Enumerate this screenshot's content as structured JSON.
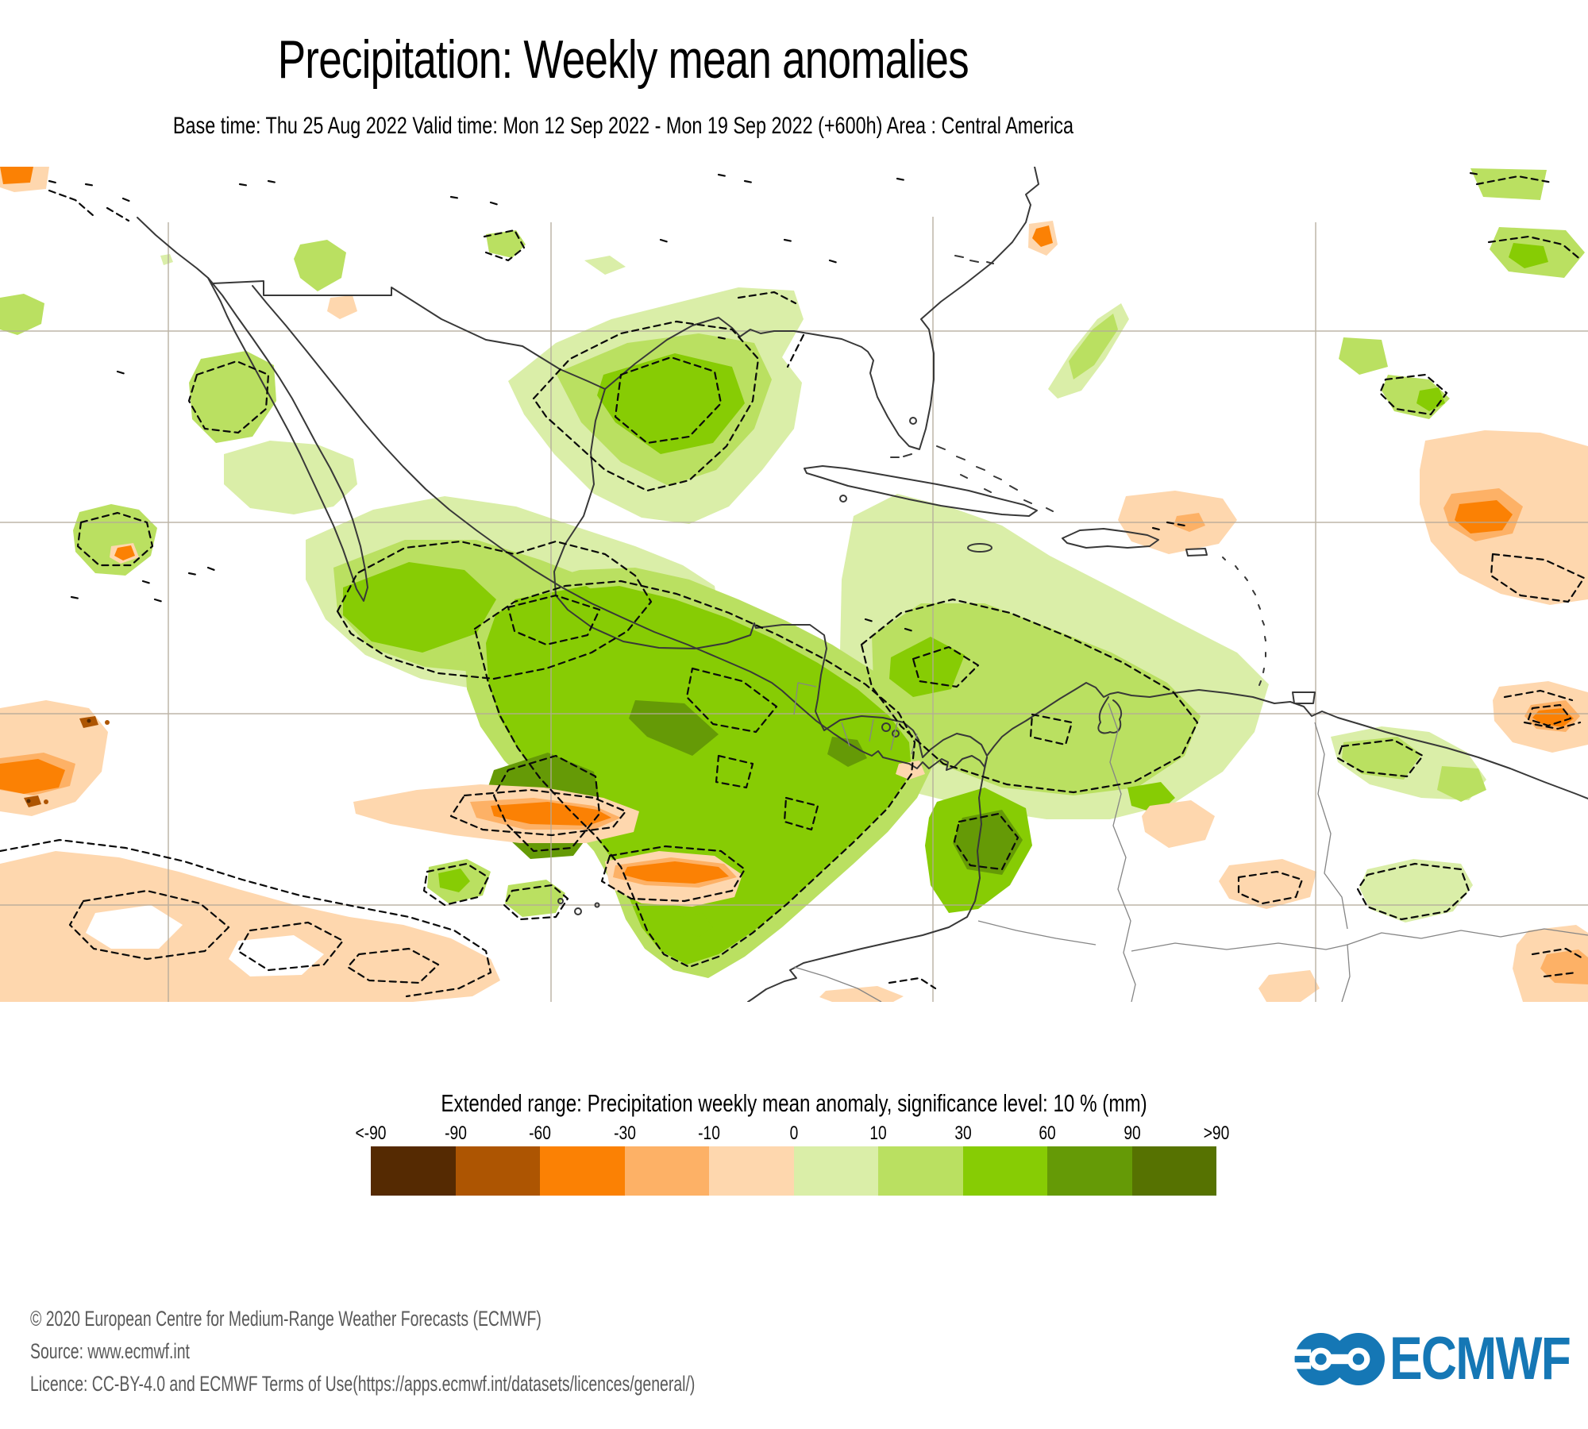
{
  "header": {
    "title": "Precipitation: Weekly mean anomalies",
    "subtitle": "Base time: Thu 25 Aug 2022 Valid time: Mon 12 Sep 2022 - Mon 19 Sep 2022 (+600h) Area : Central America"
  },
  "legend": {
    "title": "Extended range: Precipitation weekly mean anomaly, significance level: 10 % (mm)",
    "ticks": [
      "<-90",
      "-90",
      "-60",
      "-30",
      "-10",
      "0",
      "10",
      "30",
      "60",
      "90",
      ">90"
    ],
    "bin_colors": [
      "#552a02",
      "#ad5502",
      "#fb8104",
      "#fdb166",
      "#fed7ae",
      "#daeea8",
      "#bae061",
      "#87cc04",
      "#659a06",
      "#567201"
    ]
  },
  "footer": {
    "copyright": "© 2020 European Centre for Medium-Range Weather Forecasts (ECMWF)",
    "source": "Source: www.ecmwf.int",
    "licence": "Licence: CC-BY-4.0 and ECMWF Terms of Use(https://apps.ecmwf.int/datasets/licences/general/)",
    "logo_text": "ECMWF",
    "logo_color": "#1577b5"
  },
  "chart_data": {
    "type": "heatmap",
    "subtype": "filled-contour geographic anomaly map with significance contours",
    "title": "Precipitation: Weekly mean anomalies",
    "variable": "Precipitation weekly mean anomaly",
    "unit": "mm",
    "significance_level": "10 %",
    "area": "Central America",
    "base_time": "Thu 25 Aug 2022",
    "valid_time_start": "Mon 12 Sep 2022",
    "valid_time_end": "Mon 19 Sep 2022",
    "lead_time": "+600h",
    "scale_boundaries": [
      "<-90",
      "-90",
      "-60",
      "-30",
      "-10",
      "0",
      "10",
      "30",
      "60",
      "90",
      ">90"
    ],
    "scale_colors": [
      "#552a02",
      "#ad5502",
      "#fb8104",
      "#fdb166",
      "#fed7ae",
      "#daeea8",
      "#bae061",
      "#87cc04",
      "#659a06",
      "#567201"
    ],
    "graticule": {
      "horizontal_gridlines": 4,
      "vertical_gridlines": 4,
      "labels_shown": false
    },
    "anomaly_regions": [
      {
        "region": "Central and southern Mexico",
        "sign": "positive",
        "range_mm": "10 to 60"
      },
      {
        "region": "Texas / western Gulf of Mexico coast",
        "sign": "positive",
        "range_mm": "10 to 60"
      },
      {
        "region": "Eastern Pacific off southern Mexico to Panama",
        "sign": "positive",
        "range_mm": "30 to 90"
      },
      {
        "region": "Central Caribbean from Jamaica and Hispaniola to Venezuelan coast",
        "sign": "positive",
        "range_mm": "10 to 30"
      },
      {
        "region": "Panama and Pacific Colombia",
        "sign": "positive",
        "range_mm": "60 to 90"
      },
      {
        "region": "Northeast subtropical Atlantic (right edge of domain)",
        "sign": "negative",
        "range_mm": "-60 to -10"
      },
      {
        "region": "Atlantic north of Puerto Rico",
        "sign": "negative",
        "range_mm": "-30 to -10"
      },
      {
        "region": "Southwest Pacific corner of domain",
        "sign": "negative",
        "range_mm": "-30 to -10"
      },
      {
        "region": "Equatorial Pacific strip south of Central America",
        "sign": "negative",
        "range_mm": "-60 to -30"
      }
    ]
  }
}
